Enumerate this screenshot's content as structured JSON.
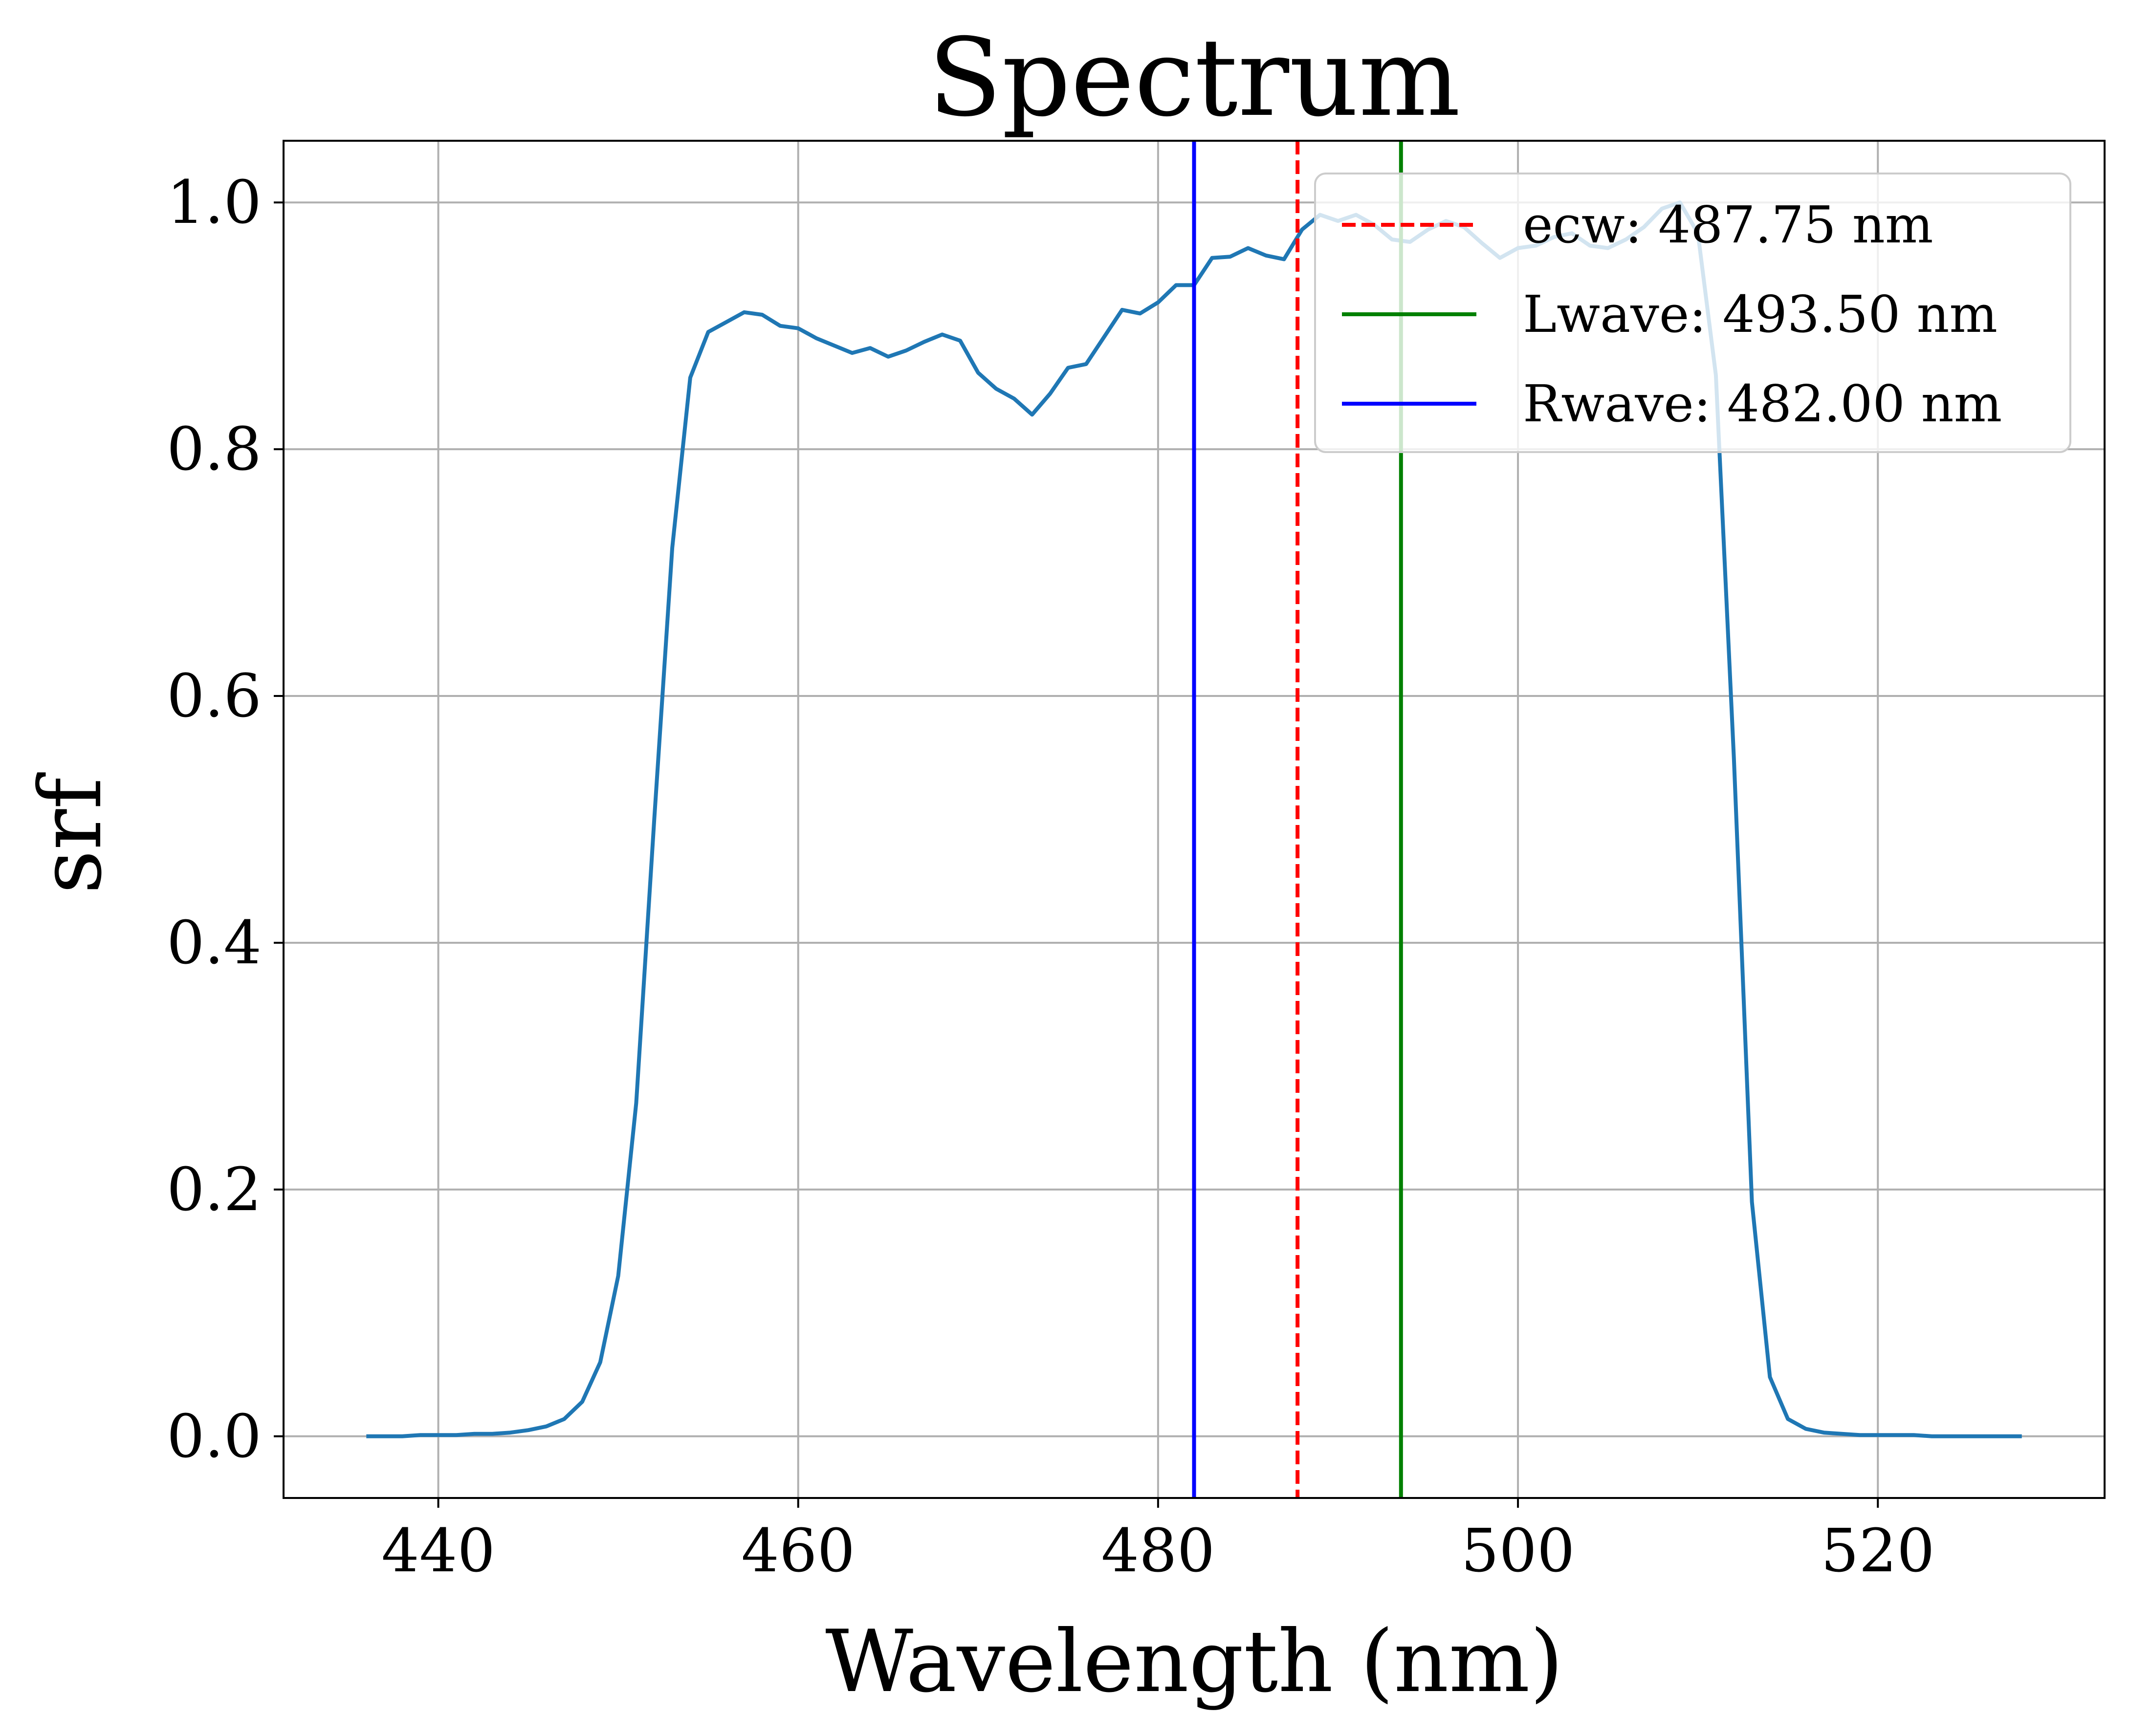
{
  "chart_data": {
    "type": "line",
    "title": "Spectrum",
    "xlabel": "Wavelength (nm)",
    "ylabel": "srf",
    "xlim": [
      431.4,
      532.6
    ],
    "ylim": [
      -0.05,
      1.05
    ],
    "grid": true,
    "xticks": [
      440,
      460,
      480,
      500,
      520
    ],
    "xtick_labels": [
      "440",
      "460",
      "480",
      "500",
      "520"
    ],
    "yticks": [
      0.0,
      0.2,
      0.4,
      0.6,
      0.8,
      1.0
    ],
    "ytick_labels": [
      "0.0",
      "0.2",
      "0.4",
      "0.6",
      "0.8",
      "1.0"
    ],
    "legend_position": "top-right",
    "series": [
      {
        "name": "srf",
        "color": "#1f77b4",
        "x": [
          436,
          437,
          438,
          439,
          440,
          441,
          442,
          443,
          444,
          445,
          446,
          447,
          448,
          449,
          450,
          451,
          452,
          453,
          454,
          455,
          456,
          457,
          458,
          459,
          460,
          461,
          462,
          463,
          464,
          465,
          466,
          467,
          468,
          469,
          470,
          471,
          472,
          473,
          474,
          475,
          476,
          477,
          478,
          479,
          480,
          481,
          482,
          483,
          484,
          485,
          486,
          487,
          488,
          489,
          490,
          491,
          492,
          493,
          494,
          495,
          496,
          497,
          498,
          499,
          500,
          501,
          502,
          503,
          504,
          505,
          506,
          507,
          508,
          509,
          510,
          511,
          512,
          513,
          514,
          515,
          516,
          517,
          518,
          519,
          520,
          521,
          522,
          523,
          524,
          525,
          526,
          527,
          528
        ],
        "y": [
          0.0,
          0.0,
          0.0,
          0.001,
          0.001,
          0.001,
          0.002,
          0.002,
          0.003,
          0.005,
          0.008,
          0.014,
          0.028,
          0.06,
          0.13,
          0.27,
          0.5,
          0.72,
          0.858,
          0.895,
          0.903,
          0.911,
          0.909,
          0.9,
          0.898,
          0.89,
          0.884,
          0.878,
          0.882,
          0.875,
          0.88,
          0.887,
          0.893,
          0.888,
          0.862,
          0.849,
          0.841,
          0.828,
          0.845,
          0.866,
          0.869,
          0.891,
          0.913,
          0.91,
          0.919,
          0.933,
          0.933,
          0.955,
          0.956,
          0.963,
          0.957,
          0.954,
          0.978,
          0.99,
          0.985,
          0.99,
          0.982,
          0.97,
          0.968,
          0.978,
          0.985,
          0.98,
          0.967,
          0.955,
          0.963,
          0.965,
          0.972,
          0.975,
          0.965,
          0.963,
          0.97,
          0.98,
          0.995,
          1.0,
          0.975,
          0.86,
          0.55,
          0.19,
          0.048,
          0.014,
          0.006,
          0.003,
          0.002,
          0.001,
          0.001,
          0.001,
          0.001,
          0.0,
          0.0,
          0.0,
          0.0,
          0.0,
          0.0
        ]
      }
    ],
    "vlines": [
      {
        "name": "ecw",
        "label": "ecw: 487.75 nm",
        "x": 487.75,
        "color": "#ff0000",
        "style": "dashed"
      },
      {
        "name": "Lwave",
        "label": "Lwave: 493.50 nm",
        "x": 493.5,
        "color": "#008000",
        "style": "solid"
      },
      {
        "name": "Rwave",
        "label": "Rwave: 482.00 nm",
        "x": 482.0,
        "color": "#0000ff",
        "style": "solid"
      }
    ]
  }
}
